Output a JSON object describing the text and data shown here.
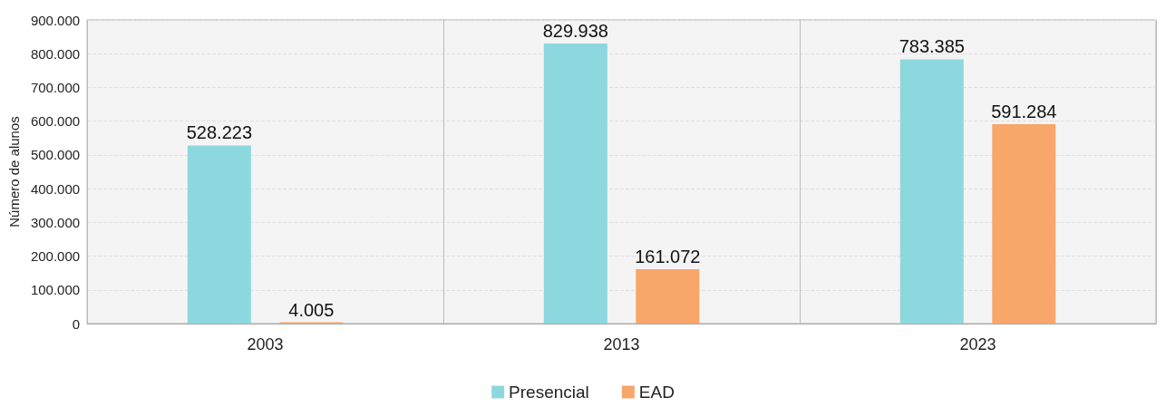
{
  "chart_data": {
    "type": "bar",
    "ylabel": "Número de alunos",
    "categories": [
      "2003",
      "2013",
      "2023"
    ],
    "series": [
      {
        "name": "Presencial",
        "color": "#8dd8de",
        "values": [
          528223,
          829938,
          783385
        ],
        "value_labels": [
          "528.223",
          "829.938",
          "783.385"
        ]
      },
      {
        "name": "EAD",
        "color": "#f9a66b",
        "values": [
          4005,
          161072,
          591284
        ],
        "value_labels": [
          "4.005",
          "161.072",
          "591.284"
        ]
      }
    ],
    "ylim": [
      0,
      900000
    ],
    "yticks": [
      {
        "value": 0,
        "label": "0"
      },
      {
        "value": 100000,
        "label": "100.000"
      },
      {
        "value": 200000,
        "label": "200.000"
      },
      {
        "value": 300000,
        "label": "300.000"
      },
      {
        "value": 400000,
        "label": "400.000"
      },
      {
        "value": 500000,
        "label": "500.000"
      },
      {
        "value": 600000,
        "label": "600.000"
      },
      {
        "value": 700000,
        "label": "700.000"
      },
      {
        "value": 800000,
        "label": "800.000"
      },
      {
        "value": 900000,
        "label": "900.000"
      }
    ],
    "grid": true,
    "legend": "bottom"
  }
}
